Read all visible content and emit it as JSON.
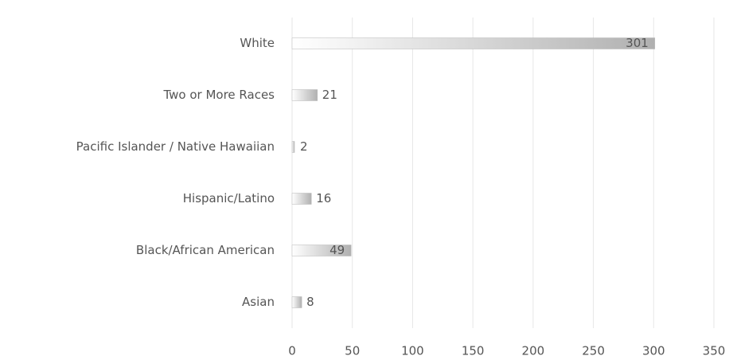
{
  "chart_data": {
    "type": "bar",
    "orientation": "horizontal",
    "categories": [
      "White",
      "Two or More Races",
      "Pacific Islander / Native Hawaiian",
      "Hispanic/Latino",
      "Black/African American",
      "Asian"
    ],
    "values": [
      301,
      21,
      2,
      16,
      49,
      8
    ],
    "color": "#b8b8b8",
    "xlim": [
      0,
      350
    ],
    "xticks": [
      0,
      50,
      100,
      150,
      200,
      250,
      300,
      350
    ],
    "grid": true
  }
}
